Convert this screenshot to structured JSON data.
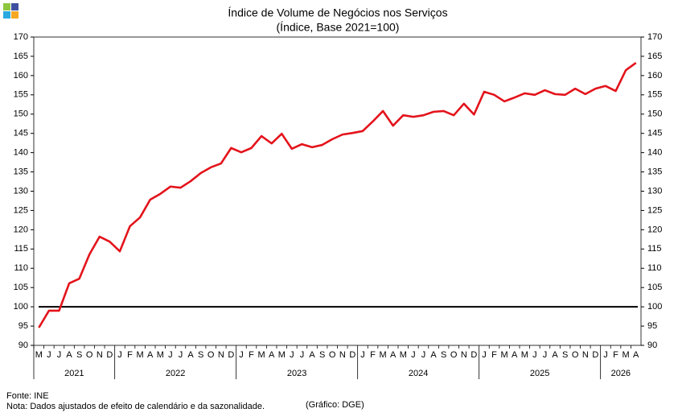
{
  "chart_data": {
    "type": "line",
    "title": "Índice de Volume de Negócios nos Serviços",
    "subtitle": "(Índice, Base 2021=100)",
    "categories": [
      "M",
      "J",
      "J",
      "A",
      "S",
      "O",
      "N",
      "D",
      "J",
      "F",
      "M",
      "A",
      "M",
      "J",
      "J",
      "A",
      "S",
      "O",
      "N",
      "D",
      "J",
      "F",
      "M",
      "A",
      "M",
      "J",
      "J",
      "A",
      "S",
      "O",
      "N",
      "D",
      "J",
      "F",
      "M",
      "A",
      "M",
      "J",
      "J",
      "A",
      "S",
      "O",
      "N",
      "D",
      "J",
      "F",
      "M",
      "A",
      "M",
      "J",
      "J",
      "A",
      "S",
      "O",
      "N",
      "D",
      "J",
      "F",
      "M",
      "A"
    ],
    "years": [
      "2021",
      "2022",
      "2023",
      "2024",
      "2025",
      "2026"
    ],
    "series": [
      {
        "color": "#e3131b",
        "values": [
          94.6,
          99.0,
          99.0,
          106.1,
          107.3,
          113.6,
          118.2,
          116.9,
          114.4,
          120.9,
          123.2,
          127.8,
          129.3,
          131.2,
          130.9,
          132.6,
          134.7,
          136.2,
          137.2,
          141.2,
          140.1,
          141.2,
          144.3,
          142.4,
          144.9,
          141.0,
          142.2,
          141.4,
          142.0,
          143.5,
          144.7,
          145.1,
          145.6,
          148.1,
          150.8,
          147.0,
          149.7,
          149.3,
          149.7,
          150.6,
          150.8,
          149.7,
          152.7,
          149.9,
          155.8,
          155.0,
          153.3,
          154.3,
          155.4,
          155.0,
          156.2,
          155.2,
          155.0,
          156.6,
          155.2,
          156.6,
          157.3,
          156.0,
          161.4,
          163.3
        ]
      }
    ],
    "ylim": [
      90,
      170
    ],
    "yticks": [
      90,
      95,
      100,
      105,
      110,
      115,
      120,
      125,
      130,
      135,
      140,
      145,
      150,
      155,
      160,
      165,
      170
    ],
    "reference_line": 100,
    "reference_color": "#000000",
    "source": "Fonte: INE",
    "note": "Nota: Dados  ajustados de efeito de calendário e da sazonalidade.",
    "credit": "(Gráfico: DGE)"
  }
}
